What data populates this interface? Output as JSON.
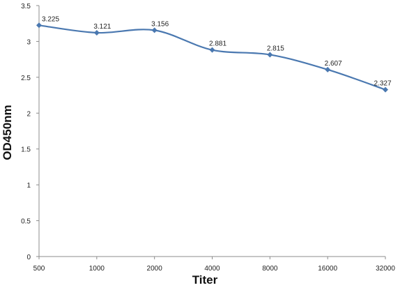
{
  "chart_data": {
    "type": "line",
    "title": "",
    "xlabel": "Titer",
    "ylabel": "OD450nm",
    "categories": [
      "500",
      "1000",
      "2000",
      "4000",
      "8000",
      "16000",
      "32000"
    ],
    "series": [
      {
        "values": [
          3.225,
          3.121,
          3.156,
          2.881,
          2.815,
          2.607,
          2.327
        ]
      }
    ],
    "data_labels": [
      "3.225",
      "3.121",
      "3.156",
      "2.881",
      "2.815",
      "2.607",
      "2.327"
    ],
    "y_ticks": [
      "0",
      "0.5",
      "1",
      "1.5",
      "2",
      "2.5",
      "3",
      "3.5"
    ],
    "ylim": [
      0,
      3.5
    ],
    "grid": false,
    "legend": "none",
    "colors": {
      "series": "#4a78b0",
      "axis": "#8c8c8c"
    }
  }
}
